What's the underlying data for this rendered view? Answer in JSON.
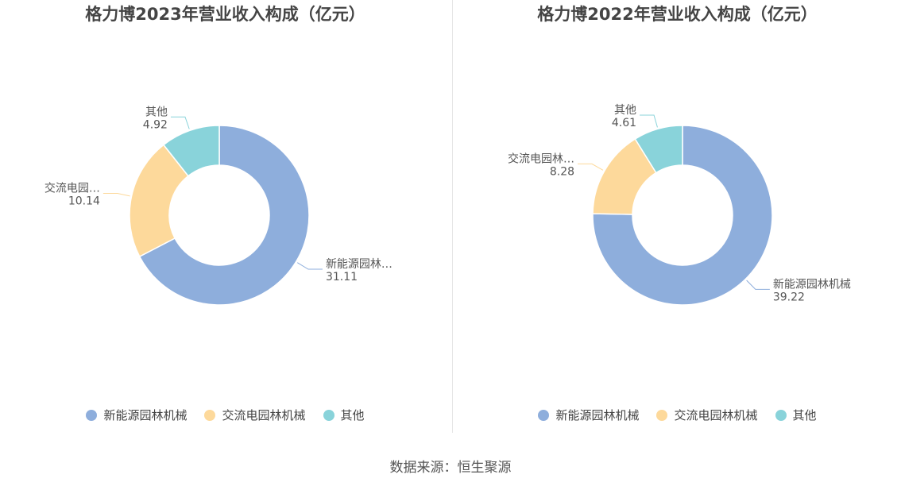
{
  "colors": {
    "新能源园林机械": "#8eaedc",
    "交流电园林机械": "#fdd99b",
    "其他": "#89d3da"
  },
  "chart_data": [
    {
      "type": "pie",
      "title": "格力博2023年营业收入构成（亿元）",
      "slices": [
        {
          "name": "新能源园林机械",
          "value": 31.11,
          "display_name": "新能源园林…"
        },
        {
          "name": "交流电园林机械",
          "value": 10.14,
          "display_name": "交流电园…"
        },
        {
          "name": "其他",
          "value": 4.92,
          "display_name": "其他"
        }
      ],
      "legend": [
        "新能源园林机械",
        "交流电园林机械",
        "其他"
      ],
      "legend_position": "bottom"
    },
    {
      "type": "pie",
      "title": "格力博2022年营业收入构成（亿元）",
      "slices": [
        {
          "name": "新能源园林机械",
          "value": 39.22,
          "display_name": "新能源园林机械"
        },
        {
          "name": "交流电园林机械",
          "value": 8.28,
          "display_name": "交流电园林…"
        },
        {
          "name": "其他",
          "value": 4.61,
          "display_name": "其他"
        }
      ],
      "legend": [
        "新能源园林机械",
        "交流电园林机械",
        "其他"
      ],
      "legend_position": "bottom"
    }
  ],
  "source": "数据来源：恒生聚源"
}
